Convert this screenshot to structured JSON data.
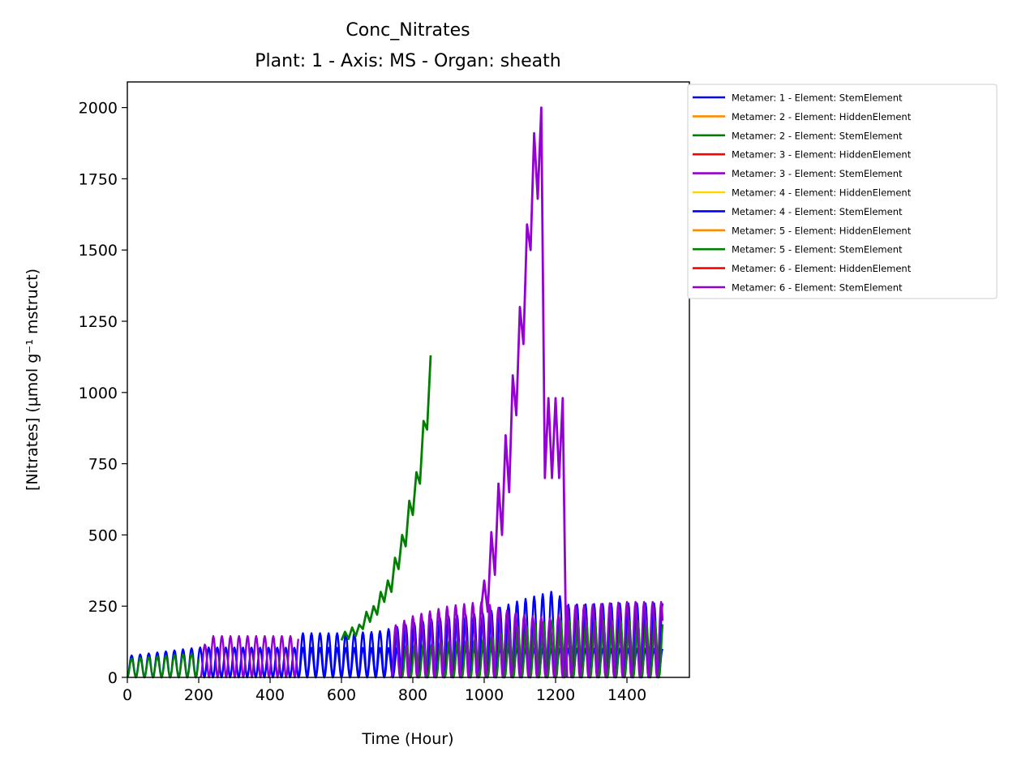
{
  "chart_data": {
    "type": "line",
    "title": "Conc_Nitrates",
    "subtitle": "Plant: 1 - Axis: MS - Organ: sheath",
    "xlabel": "Time (Hour)",
    "ylabel": "[Nitrates] (µmol g⁻¹ mstruct)",
    "xlim": [
      0,
      1575
    ],
    "ylim": [
      0,
      2090
    ],
    "xticks": [
      0,
      200,
      400,
      600,
      800,
      1000,
      1200,
      1400
    ],
    "yticks": [
      0,
      250,
      500,
      750,
      1000,
      1250,
      1500,
      1750,
      2000
    ],
    "grid": false,
    "legend_position": "outside-right",
    "oscillation_period_hours": 24,
    "series": [
      {
        "name": "Metamer: 1 - Element: StemElement",
        "color": "#0000ff",
        "oscillating": true,
        "x": [
          0,
          200,
          210,
          1500
        ],
        "y": [
          75,
          105,
          105,
          100
        ]
      },
      {
        "name": "Metamer: 2 - Element: HiddenElement",
        "color": "#ff8c00",
        "oscillating": false,
        "x": [],
        "y": []
      },
      {
        "name": "Metamer: 2 - Element: StemElement",
        "color": "#008000",
        "oscillating": true,
        "x": [
          0,
          200
        ],
        "y": [
          65,
          85
        ]
      },
      {
        "name": "Metamer: 3 - Element: HiddenElement",
        "color": "#ff0000",
        "oscillating": false,
        "x": [],
        "y": []
      },
      {
        "name": "Metamer: 3 - Element: StemElement",
        "color": "#9400d3",
        "oscillating": true,
        "x": [
          205,
          240,
          480
        ],
        "y": [
          100,
          145,
          145
        ]
      },
      {
        "name": "Metamer: 4 - Element: HiddenElement",
        "color": "#ffd700",
        "oscillating": false,
        "x": [],
        "y": []
      },
      {
        "name": "Metamer: 4 - Element: StemElement",
        "color": "#0000ff",
        "oscillating": true,
        "x": [
          480,
          600,
          700,
          800,
          900,
          1000,
          1100,
          1200,
          1230,
          1400,
          1500
        ],
        "y": [
          155,
          155,
          160,
          190,
          215,
          225,
          270,
          305,
          255,
          260,
          260
        ]
      },
      {
        "name": "Metamer: 5 - Element: HiddenElement",
        "color": "#ff8c00",
        "oscillating": false,
        "x": [],
        "y": []
      },
      {
        "name": "Metamer: 5 - Element: StemElement",
        "color": "#008000",
        "oscillating": true,
        "x": [
          770,
          850,
          900,
          990,
          1100,
          1200,
          1300,
          1500
        ],
        "y": [
          115,
          120,
          130,
          135,
          180,
          200,
          200,
          200
        ]
      },
      {
        "name": "Metamer: 6 - Element: HiddenElement",
        "color": "#ff0000",
        "oscillating": false,
        "x": [],
        "y": []
      },
      {
        "name": "Metamer: 6 - Element: StemElement",
        "color": "#9400d3",
        "oscillating": true,
        "x": [
          740,
          800,
          900,
          990,
          1100,
          1200,
          1230,
          1300,
          1400,
          1500
        ],
        "y": [
          175,
          215,
          250,
          265,
          220,
          205,
          250,
          255,
          265,
          265
        ]
      }
    ],
    "extra_lines": [
      {
        "label": "Metamer: 5 - Element: StemElement",
        "color": "#008000",
        "x": [
          600,
          610,
          620,
          630,
          640,
          650,
          660,
          670,
          680,
          690,
          700,
          710,
          720,
          730,
          740,
          750,
          760,
          770,
          780,
          790,
          800,
          810,
          820,
          830,
          840,
          850
        ],
        "y": [
          130,
          160,
          135,
          175,
          145,
          185,
          170,
          230,
          195,
          250,
          220,
          300,
          265,
          340,
          300,
          420,
          380,
          500,
          460,
          620,
          570,
          720,
          680,
          900,
          870,
          1130
        ]
      },
      {
        "label": "Metamer: 6 - Element: StemElement",
        "color": "#9400d3",
        "x": [
          990,
          1000,
          1010,
          1020,
          1030,
          1040,
          1050,
          1060,
          1070,
          1080,
          1090,
          1100,
          1110,
          1120,
          1130,
          1140,
          1150,
          1160,
          1170,
          1180,
          1190,
          1200,
          1210,
          1220,
          1228,
          1232
        ],
        "y": [
          220,
          340,
          230,
          510,
          360,
          680,
          500,
          850,
          650,
          1060,
          920,
          1300,
          1170,
          1590,
          1500,
          1910,
          1680,
          2000,
          700,
          980,
          700,
          980,
          700,
          980,
          250,
          0
        ]
      }
    ]
  }
}
